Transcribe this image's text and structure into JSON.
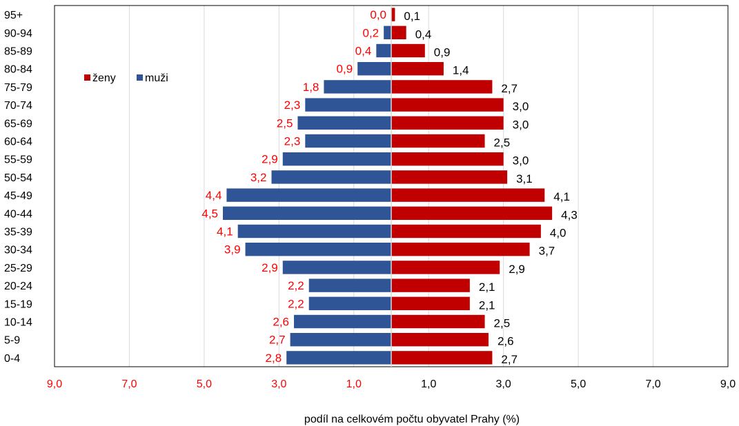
{
  "chart_data": {
    "type": "bar",
    "orientation": "horizontal-population-pyramid",
    "categories": [
      "95+",
      "90-94",
      "85-89",
      "80-84",
      "75-79",
      "70-74",
      "65-69",
      "60-64",
      "55-59",
      "50-54",
      "45-49",
      "40-44",
      "35-39",
      "30-34",
      "25-29",
      "20-24",
      "15-19",
      "10-14",
      "5-9",
      "0-4"
    ],
    "series": [
      {
        "name": "ženy",
        "side": "right",
        "color": "#c00000",
        "label_color": "#000000",
        "values": [
          0.1,
          0.4,
          0.9,
          1.4,
          2.7,
          3.0,
          3.0,
          2.5,
          3.0,
          3.1,
          4.1,
          4.3,
          4.0,
          3.7,
          2.9,
          2.1,
          2.1,
          2.5,
          2.6,
          2.7
        ],
        "labels": [
          "0,1",
          "0,4",
          "0,9",
          "1,4",
          "2,7",
          "3,0",
          "3,0",
          "2,5",
          "3,0",
          "3,1",
          "4,1",
          "4,3",
          "4,0",
          "3,7",
          "2,9",
          "2,1",
          "2,1",
          "2,5",
          "2,6",
          "2,7"
        ]
      },
      {
        "name": "muži",
        "side": "left",
        "color": "#2f5597",
        "label_color": "#ff0000",
        "values": [
          0.0,
          0.2,
          0.4,
          0.9,
          1.8,
          2.3,
          2.5,
          2.3,
          2.9,
          3.2,
          4.4,
          4.5,
          4.1,
          3.9,
          2.9,
          2.2,
          2.2,
          2.6,
          2.7,
          2.8
        ],
        "labels": [
          "0,0",
          "0,2",
          "0,4",
          "0,9",
          "1,8",
          "2,3",
          "2,5",
          "2,3",
          "2,9",
          "3,2",
          "4,4",
          "4,5",
          "4,1",
          "3,9",
          "2,9",
          "2,2",
          "2,2",
          "2,6",
          "2,7",
          "2,8"
        ]
      }
    ],
    "xlim": [
      -9,
      9
    ],
    "xticks": [
      -9,
      -7,
      -5,
      -3,
      -1,
      1,
      3,
      5,
      7,
      9
    ],
    "xtick_labels": [
      "9,0",
      "7,0",
      "5,0",
      "3,0",
      "1,0",
      "1,0",
      "3,0",
      "5,0",
      "7,0",
      "9,0"
    ],
    "left_tick_color": "#ff0000",
    "right_tick_color": "#000000",
    "xlabel": "podíl na celkovém počtu obyvatel Prahy (%)",
    "title": "",
    "grid": "vertical",
    "legend_position": "top-left"
  }
}
